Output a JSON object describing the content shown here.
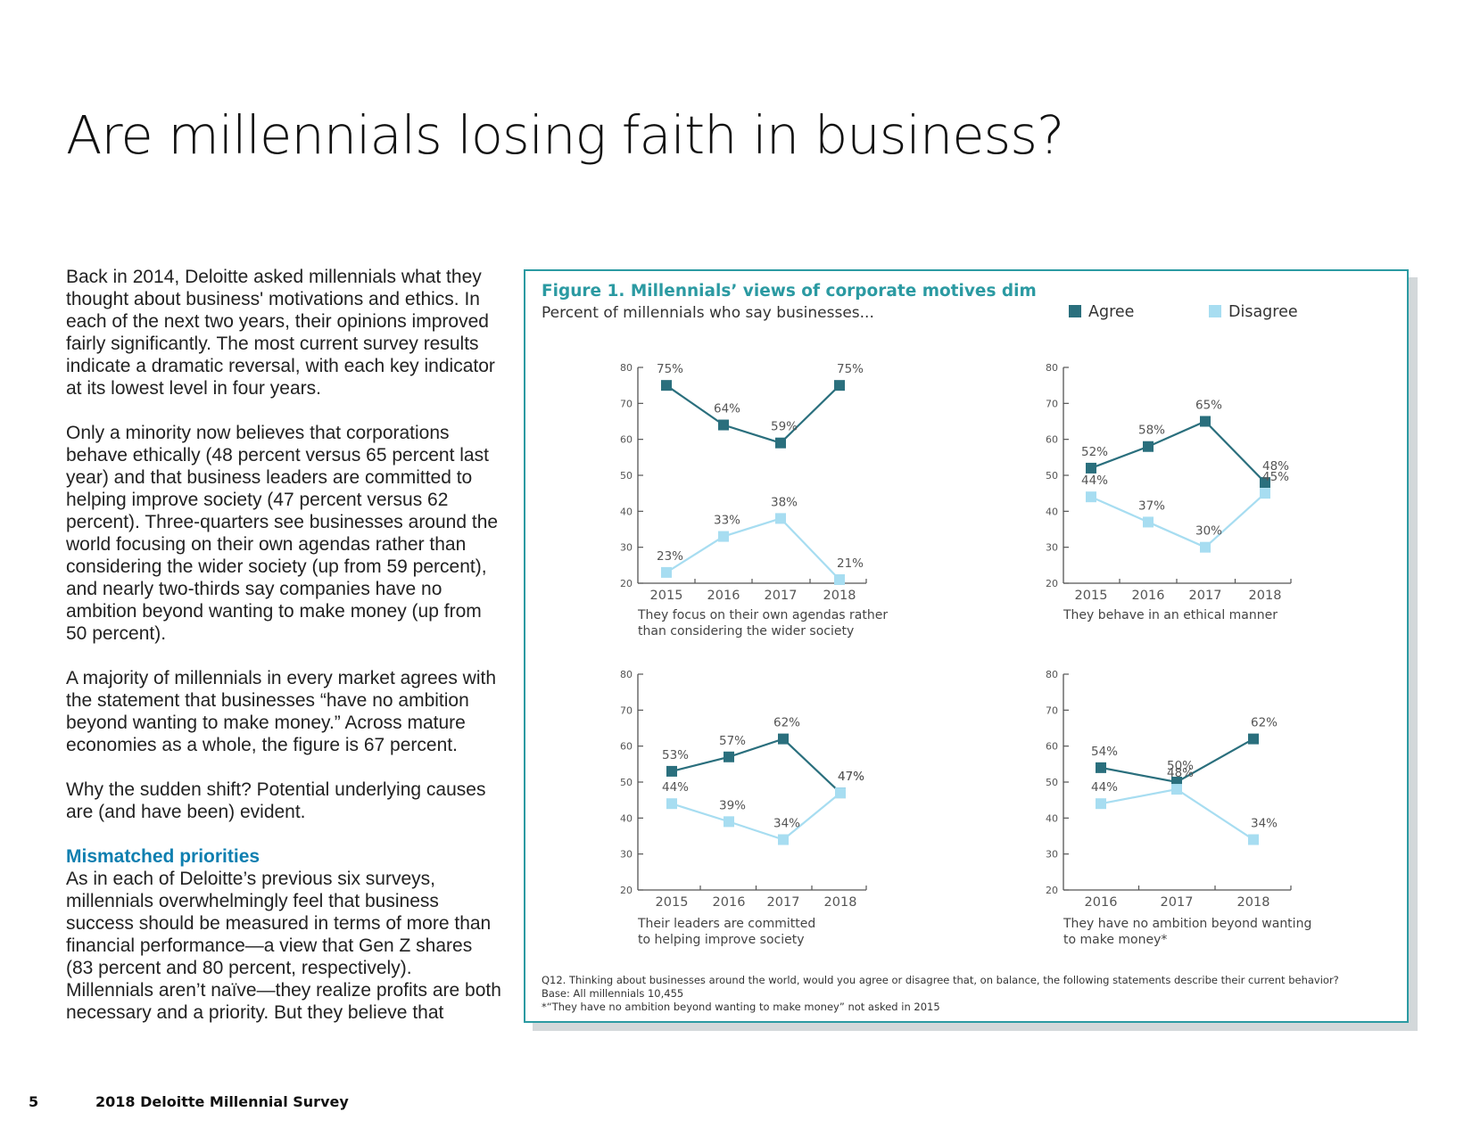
{
  "page": {
    "title": "Are millennials losing faith in business?",
    "paragraphs": [
      "Back in 2014, Deloitte asked millennials what they thought about business' motivations and ethics. In each of the next two years, their opinions improved fairly significantly. The most current survey results indicate a dramatic reversal, with each key indicator at its lowest level in four years.",
      "Only a minority now believes that corporations behave ethically (48 percent versus 65 percent last year) and that business leaders are committed to helping improve society (47 percent versus 62 percent). Three-quarters see businesses around the world focusing on their own agendas rather than considering the wider society (up from 59 percent), and nearly two-thirds say companies have no ambition beyond wanting to make money (up from 50 percent).",
      "A majority of millennials in every market agrees with the statement that businesses “have no ambition beyond wanting to make money.” Across mature economies as a whole, the figure is 67 percent.",
      "Why the sudden shift? Potential underlying causes are (and have been) evident."
    ],
    "section_heading": "Mismatched priorities",
    "section_text": "As in each of Deloitte’s previous six surveys, millennials overwhelmingly feel that business success should be measured in terms of more than financial performance—a view that Gen Z shares (83 percent and 80 percent, respectively). Millennials aren’t naïve—they realize profits are both necessary and a priority. But they believe that",
    "footer_page": "5",
    "footer_title": "2018 Deloitte Millennial Survey"
  },
  "figure": {
    "title": "Figure 1. Millennials’ views of corporate motives dim",
    "subtitle": "Percent of millennials who say businesses...",
    "legend": [
      {
        "label": "Agree",
        "color": "#2a6f7d"
      },
      {
        "label": "Disagree",
        "color": "#a7ddf1"
      }
    ],
    "notes": [
      "Q12. Thinking about businesses around the world, would you agree or disagree that, on balance, the following statements describe their current behavior?",
      "Base: All millennials 10,455",
      "*“They have no ambition beyond wanting to make money” not asked in 2015"
    ]
  },
  "chart_data": [
    {
      "type": "line",
      "categories": [
        "2015",
        "2016",
        "2017",
        "2018"
      ],
      "series": [
        {
          "name": "Agree",
          "values": [
            75,
            64,
            59,
            75
          ],
          "labels": [
            "75%",
            "64%",
            "59%",
            "75%"
          ]
        },
        {
          "name": "Disagree",
          "values": [
            23,
            33,
            38,
            21
          ],
          "labels": [
            "23%",
            "33%",
            "38%",
            "21%"
          ]
        }
      ],
      "caption": [
        "They focus on their own agendas rather",
        "than considering the wider society"
      ],
      "ylim": [
        20,
        80
      ],
      "yticks": [
        20,
        30,
        40,
        50,
        60,
        70,
        80
      ]
    },
    {
      "type": "line",
      "categories": [
        "2015",
        "2016",
        "2017",
        "2018"
      ],
      "series": [
        {
          "name": "Agree",
          "values": [
            52,
            58,
            65,
            48
          ],
          "labels": [
            "52%",
            "58%",
            "65%",
            "48%"
          ]
        },
        {
          "name": "Disagree",
          "values": [
            44,
            37,
            30,
            45
          ],
          "labels": [
            "44%",
            "37%",
            "30%",
            "45%"
          ]
        }
      ],
      "caption": [
        "They behave in an ethical manner"
      ],
      "ylim": [
        20,
        80
      ],
      "yticks": [
        20,
        30,
        40,
        50,
        60,
        70,
        80
      ]
    },
    {
      "type": "line",
      "categories": [
        "2015",
        "2016",
        "2017",
        "2018"
      ],
      "series": [
        {
          "name": "Agree",
          "values": [
            53,
            57,
            62,
            47
          ],
          "labels": [
            "53%",
            "57%",
            "62%",
            "47%"
          ]
        },
        {
          "name": "Disagree",
          "values": [
            44,
            39,
            34,
            47
          ],
          "labels": [
            "44%",
            "39%",
            "34%",
            "47%"
          ]
        }
      ],
      "caption": [
        "Their leaders are committed",
        "to helping improve society"
      ],
      "ylim": [
        20,
        80
      ],
      "yticks": [
        20,
        30,
        40,
        50,
        60,
        70,
        80
      ]
    },
    {
      "type": "line",
      "categories": [
        "2016",
        "2017",
        "2018"
      ],
      "series": [
        {
          "name": "Agree",
          "values": [
            54,
            50,
            62
          ],
          "labels": [
            "54%",
            "50%",
            "62%"
          ]
        },
        {
          "name": "Disagree",
          "values": [
            44,
            48,
            34
          ],
          "labels": [
            "44%",
            "48%",
            "34%"
          ]
        }
      ],
      "caption": [
        "They have no ambition beyond wanting",
        "to make money*"
      ],
      "ylim": [
        20,
        80
      ],
      "yticks": [
        20,
        30,
        40,
        50,
        60,
        70,
        80
      ]
    }
  ]
}
